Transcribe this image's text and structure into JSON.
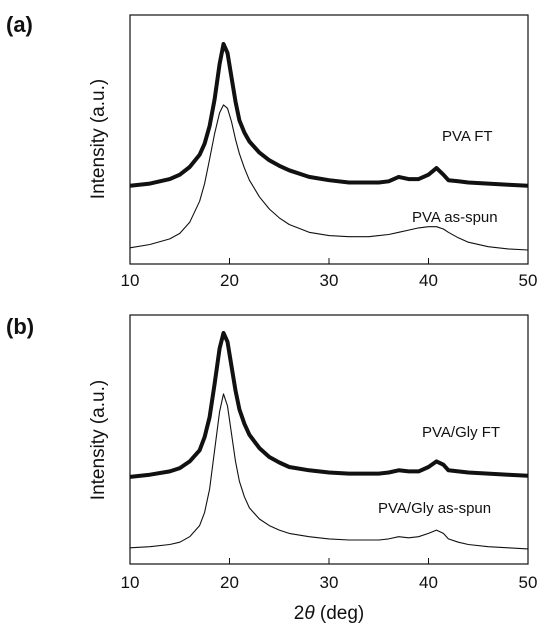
{
  "chart_data": [
    {
      "panel": "(a)",
      "type": "line",
      "ylabel": "Intensity (a.u.)",
      "xlim": [
        10,
        50
      ],
      "xticks": [
        "10",
        "20",
        "30",
        "40",
        "50"
      ],
      "y_ticks_shown": false,
      "series": [
        {
          "name": "PVA FT",
          "line": "thick",
          "x": [
            10,
            12,
            14,
            15,
            16,
            17,
            17.5,
            18,
            18.5,
            19,
            19.4,
            19.8,
            20.2,
            20.6,
            21,
            21.5,
            22,
            23,
            24,
            25,
            26,
            28,
            30,
            32,
            34,
            35,
            36,
            37,
            38,
            39,
            40,
            40.8,
            41.5,
            42,
            43,
            44,
            46,
            48,
            50
          ],
          "y": [
            0.58,
            0.6,
            0.64,
            0.68,
            0.75,
            0.86,
            0.96,
            1.12,
            1.36,
            1.68,
            1.86,
            1.78,
            1.56,
            1.34,
            1.17,
            1.06,
            0.98,
            0.88,
            0.81,
            0.76,
            0.72,
            0.66,
            0.63,
            0.61,
            0.61,
            0.61,
            0.62,
            0.66,
            0.64,
            0.64,
            0.68,
            0.74,
            0.68,
            0.63,
            0.62,
            0.61,
            0.6,
            0.59,
            0.58
          ]
        },
        {
          "name": "PVA as-spun",
          "line": "thin",
          "x": [
            10,
            12,
            14,
            15,
            16,
            17,
            17.5,
            18,
            18.5,
            19,
            19.4,
            19.8,
            20.2,
            20.6,
            21,
            21.5,
            22,
            23,
            24,
            25,
            26,
            28,
            30,
            32,
            34,
            35,
            36,
            37,
            38,
            39,
            40,
            40.8,
            41.5,
            42,
            43,
            44,
            46,
            48,
            50
          ],
          "y": [
            0.02,
            0.05,
            0.1,
            0.15,
            0.25,
            0.44,
            0.6,
            0.82,
            1.05,
            1.24,
            1.31,
            1.28,
            1.16,
            1.0,
            0.87,
            0.74,
            0.63,
            0.48,
            0.37,
            0.29,
            0.23,
            0.16,
            0.13,
            0.12,
            0.12,
            0.13,
            0.14,
            0.16,
            0.18,
            0.2,
            0.21,
            0.21,
            0.19,
            0.16,
            0.11,
            0.07,
            0.03,
            0.01,
            0.0
          ]
        }
      ]
    },
    {
      "panel": "(b)",
      "type": "line",
      "ylabel": "Intensity (a.u.)",
      "xlabel_prefix": "2",
      "xlabel_symbol": "θ",
      "xlabel_suffix": " (deg)",
      "xlim": [
        10,
        50
      ],
      "xticks": [
        "10",
        "20",
        "30",
        "40",
        "50"
      ],
      "y_ticks_shown": false,
      "series": [
        {
          "name": "PVA/Gly FT",
          "line": "thick",
          "x": [
            10,
            12,
            14,
            15,
            16,
            17,
            17.5,
            18,
            18.5,
            19,
            19.4,
            19.8,
            20.2,
            20.6,
            21,
            21.5,
            22,
            23,
            24,
            25,
            26,
            28,
            30,
            32,
            34,
            35,
            36,
            37,
            38,
            39,
            40,
            40.8,
            41.5,
            42,
            43,
            44,
            46,
            48,
            50
          ],
          "y": [
            0.66,
            0.68,
            0.71,
            0.74,
            0.8,
            0.9,
            1.02,
            1.2,
            1.5,
            1.82,
            1.96,
            1.88,
            1.66,
            1.44,
            1.27,
            1.14,
            1.04,
            0.92,
            0.84,
            0.79,
            0.75,
            0.72,
            0.7,
            0.69,
            0.69,
            0.69,
            0.7,
            0.72,
            0.71,
            0.71,
            0.75,
            0.8,
            0.77,
            0.72,
            0.71,
            0.7,
            0.69,
            0.68,
            0.67
          ]
        },
        {
          "name": "PVA/Gly as-spun",
          "line": "thin",
          "x": [
            10,
            12,
            14,
            15,
            16,
            17,
            17.5,
            18,
            18.5,
            19,
            19.4,
            19.8,
            20.2,
            20.6,
            21,
            21.5,
            22,
            23,
            24,
            25,
            26,
            28,
            30,
            32,
            34,
            35,
            36,
            37,
            38,
            39,
            40,
            40.8,
            41.5,
            42,
            43,
            44,
            46,
            48,
            50
          ],
          "y": [
            0.02,
            0.03,
            0.05,
            0.07,
            0.12,
            0.22,
            0.34,
            0.55,
            0.9,
            1.25,
            1.41,
            1.3,
            1.05,
            0.8,
            0.62,
            0.48,
            0.38,
            0.28,
            0.22,
            0.18,
            0.15,
            0.12,
            0.1,
            0.09,
            0.09,
            0.09,
            0.1,
            0.12,
            0.11,
            0.12,
            0.15,
            0.18,
            0.15,
            0.1,
            0.07,
            0.05,
            0.03,
            0.02,
            0.01
          ]
        }
      ]
    }
  ]
}
